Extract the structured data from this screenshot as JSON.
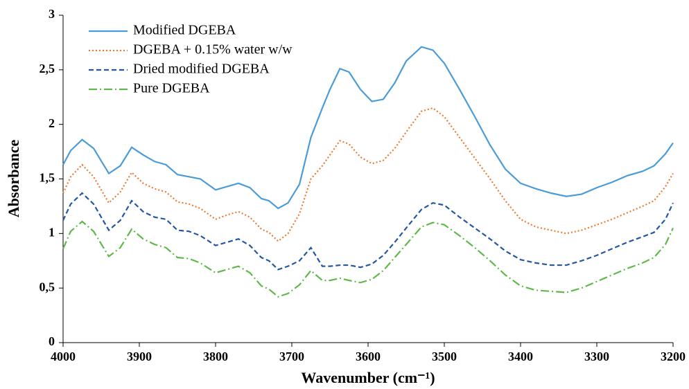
{
  "chart_data": {
    "type": "line",
    "x_label": "Wavenumber (cm⁻¹)",
    "y_label": "Absorbance",
    "x": [
      4000,
      3990,
      3975,
      3960,
      3940,
      3925,
      3910,
      3895,
      3880,
      3865,
      3850,
      3835,
      3820,
      3800,
      3785,
      3770,
      3755,
      3740,
      3730,
      3718,
      3705,
      3690,
      3675,
      3660,
      3650,
      3637,
      3625,
      3610,
      3595,
      3580,
      3565,
      3550,
      3530,
      3515,
      3500,
      3480,
      3460,
      3440,
      3420,
      3400,
      3380,
      3360,
      3340,
      3320,
      3300,
      3280,
      3260,
      3240,
      3225,
      3210,
      3200
    ],
    "series": [
      {
        "name": "Modified DGEBA",
        "color": "#4a9bd8",
        "style": "solid",
        "values": [
          1.63,
          1.76,
          1.86,
          1.78,
          1.55,
          1.62,
          1.79,
          1.72,
          1.66,
          1.63,
          1.54,
          1.52,
          1.5,
          1.4,
          1.43,
          1.46,
          1.42,
          1.32,
          1.3,
          1.23,
          1.28,
          1.45,
          1.88,
          2.15,
          2.32,
          2.51,
          2.48,
          2.32,
          2.21,
          2.23,
          2.38,
          2.58,
          2.71,
          2.68,
          2.56,
          2.32,
          2.07,
          1.81,
          1.59,
          1.46,
          1.41,
          1.37,
          1.34,
          1.36,
          1.42,
          1.47,
          1.53,
          1.57,
          1.62,
          1.73,
          1.83
        ]
      },
      {
        "name": "DGEBA + 0.15% water w/w",
        "color": "#ec7a30",
        "style": "dotted",
        "values": [
          1.37,
          1.52,
          1.63,
          1.52,
          1.28,
          1.38,
          1.56,
          1.46,
          1.41,
          1.38,
          1.29,
          1.27,
          1.23,
          1.13,
          1.17,
          1.2,
          1.15,
          1.04,
          1.01,
          0.93,
          1.0,
          1.18,
          1.5,
          1.62,
          1.72,
          1.85,
          1.82,
          1.7,
          1.64,
          1.67,
          1.78,
          1.93,
          2.12,
          2.15,
          2.07,
          1.88,
          1.69,
          1.5,
          1.3,
          1.13,
          1.06,
          1.03,
          1.0,
          1.03,
          1.08,
          1.13,
          1.19,
          1.25,
          1.3,
          1.43,
          1.55
        ]
      },
      {
        "name": "Dried modified DGEBA",
        "color": "#2457a0",
        "style": "dashed",
        "values": [
          1.12,
          1.27,
          1.37,
          1.27,
          1.03,
          1.12,
          1.3,
          1.2,
          1.15,
          1.13,
          1.03,
          1.02,
          0.98,
          0.89,
          0.92,
          0.95,
          0.89,
          0.78,
          0.75,
          0.67,
          0.7,
          0.75,
          0.87,
          0.7,
          0.7,
          0.71,
          0.71,
          0.69,
          0.72,
          0.8,
          0.92,
          1.05,
          1.22,
          1.28,
          1.26,
          1.15,
          1.05,
          0.95,
          0.84,
          0.76,
          0.73,
          0.71,
          0.71,
          0.75,
          0.8,
          0.86,
          0.92,
          0.97,
          1.01,
          1.13,
          1.28
        ]
      },
      {
        "name": "Pure DGEBA",
        "color": "#5fb94a",
        "style": "dashdot",
        "values": [
          0.86,
          1.02,
          1.11,
          1.02,
          0.79,
          0.87,
          1.04,
          0.95,
          0.9,
          0.87,
          0.78,
          0.77,
          0.73,
          0.64,
          0.67,
          0.7,
          0.64,
          0.52,
          0.49,
          0.42,
          0.45,
          0.53,
          0.66,
          0.57,
          0.57,
          0.59,
          0.57,
          0.55,
          0.58,
          0.66,
          0.78,
          0.9,
          1.06,
          1.1,
          1.08,
          0.98,
          0.87,
          0.75,
          0.62,
          0.52,
          0.48,
          0.47,
          0.46,
          0.5,
          0.56,
          0.62,
          0.68,
          0.73,
          0.78,
          0.9,
          1.05
        ]
      }
    ],
    "xlim": [
      4000,
      3200
    ],
    "xticks": [
      4000,
      3900,
      3800,
      3700,
      3600,
      3500,
      3400,
      3300,
      3200
    ],
    "ylim": [
      0,
      3
    ],
    "yticks": [
      0,
      {
        "value": 0.5,
        "label": "0,5"
      },
      1,
      {
        "value": 1.5,
        "label": "1,5"
      },
      2,
      {
        "value": 2.5,
        "label": "2,5"
      },
      3
    ],
    "grid": false,
    "legend": "top-left"
  }
}
